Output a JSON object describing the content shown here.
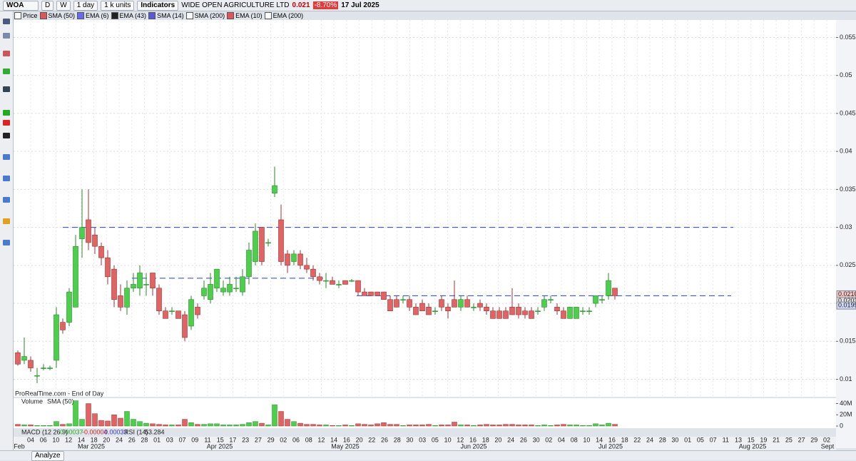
{
  "toolbar": {
    "symbol": "WOA",
    "d": "D",
    "w": "W",
    "period": "1 day",
    "units": "1 k units",
    "indicators": "Indicators",
    "company": "WIDE OPEN AGRICULTURE LTD",
    "price": "0.021",
    "change": "-8.70%",
    "date": "17 Jul 2025"
  },
  "legend": [
    {
      "name": "Price",
      "color": "#ffffff"
    },
    {
      "name": "SMA (50)",
      "color": "#e05555"
    },
    {
      "name": "EMA (6)",
      "color": "#6a6af0"
    },
    {
      "name": "EMA (43)",
      "color": "#222222"
    },
    {
      "name": "SMA (14)",
      "color": "#5a5ad8"
    },
    {
      "name": "SMA (200)",
      "color": "#ffffff"
    },
    {
      "name": "EMA (10)",
      "color": "#e05555"
    },
    {
      "name": "EMA (200)",
      "color": "#ffffff"
    }
  ],
  "footer": {
    "source": "ProRealTime.com - End of Day",
    "volume": "Volume",
    "volume_sma": "SMA (50)",
    "macd": "MACD (12 26 9)",
    "macd_1": "0.00037",
    "macd_2": "-0.00004",
    "macd_3": "0.00033",
    "rsi": "RSI (14)",
    "rsi_value": "53.284",
    "analyze": "Analyze"
  },
  "chart_data": {
    "type": "candlestick",
    "up_color": "#4cd04c",
    "down_color": "#e06464",
    "ylim": [
      0.0077,
      0.0573
    ],
    "yticks": [
      0.01,
      0.015,
      0.02,
      0.025,
      0.03,
      0.035,
      0.04,
      0.045,
      0.05,
      0.055
    ],
    "grid": true,
    "categories": [
      "04",
      "06",
      "10",
      "12",
      "14",
      "18",
      "20",
      "24",
      "26",
      "28",
      "01",
      "03",
      "07",
      "09",
      "11",
      "15",
      "17",
      "23",
      "27",
      "29",
      "02",
      "06",
      "08",
      "12",
      "14",
      "16",
      "20",
      "22",
      "26",
      "28",
      "30",
      "03",
      "05",
      "10",
      "12",
      "16",
      "18",
      "20",
      "24",
      "26",
      "30",
      "02",
      "04",
      "08",
      "10",
      "14",
      "16",
      "18",
      "22",
      "24",
      "28",
      "30",
      "01",
      "05",
      "07",
      "11",
      "13",
      "15",
      "19",
      "21",
      "25",
      "27",
      "29",
      "02"
    ],
    "months": [
      "Feb",
      "Mar 2025",
      "Apr 2025",
      "May 2025",
      "Jun 2025",
      "Jul 2025",
      "Aug 2025",
      "Sept"
    ],
    "candles": [
      [
        0.0135,
        0.0138,
        0.0118,
        0.012
      ],
      [
        0.0125,
        0.0155,
        0.012,
        0.013
      ],
      [
        0.0125,
        0.013,
        0.011,
        0.0115
      ],
      [
        0.0105,
        0.0115,
        0.0095,
        0.0105
      ],
      [
        0.0115,
        0.012,
        0.0112,
        0.0115
      ],
      [
        0.0115,
        0.0118,
        0.0112,
        0.0115
      ],
      [
        0.0125,
        0.0195,
        0.0115,
        0.0185
      ],
      [
        0.0175,
        0.018,
        0.016,
        0.0165
      ],
      [
        0.0175,
        0.022,
        0.017,
        0.0215
      ],
      [
        0.0195,
        0.029,
        0.0195,
        0.0275
      ],
      [
        0.0285,
        0.035,
        0.026,
        0.03
      ],
      [
        0.031,
        0.035,
        0.027,
        0.028
      ],
      [
        0.029,
        0.03,
        0.0265,
        0.0275
      ],
      [
        0.0275,
        0.028,
        0.025,
        0.026
      ],
      [
        0.026,
        0.027,
        0.0225,
        0.0235
      ],
      [
        0.0245,
        0.025,
        0.0195,
        0.0205
      ],
      [
        0.021,
        0.0225,
        0.019,
        0.0195
      ],
      [
        0.0195,
        0.023,
        0.0185,
        0.022
      ],
      [
        0.022,
        0.024,
        0.0215,
        0.0225
      ],
      [
        0.022,
        0.025,
        0.021,
        0.024
      ],
      [
        0.0225,
        0.024,
        0.021,
        0.0225
      ],
      [
        0.024,
        0.024,
        0.021,
        0.022
      ],
      [
        0.022,
        0.0225,
        0.0185,
        0.019
      ],
      [
        0.019,
        0.0195,
        0.018,
        0.018
      ],
      [
        0.019,
        0.0195,
        0.0185,
        0.019
      ],
      [
        0.019,
        0.019,
        0.018,
        0.018
      ],
      [
        0.0185,
        0.019,
        0.015,
        0.0155
      ],
      [
        0.017,
        0.021,
        0.0165,
        0.0205
      ],
      [
        0.0195,
        0.02,
        0.018,
        0.0185
      ],
      [
        0.021,
        0.023,
        0.0205,
        0.022
      ],
      [
        0.0205,
        0.024,
        0.02,
        0.0225
      ],
      [
        0.022,
        0.0245,
        0.0215,
        0.0245
      ],
      [
        0.0215,
        0.023,
        0.021,
        0.022
      ],
      [
        0.0215,
        0.0235,
        0.021,
        0.0225
      ],
      [
        0.022,
        0.0235,
        0.0215,
        0.022
      ],
      [
        0.0215,
        0.0245,
        0.021,
        0.0235
      ],
      [
        0.0235,
        0.028,
        0.0225,
        0.027
      ],
      [
        0.0255,
        0.0305,
        0.025,
        0.0295
      ],
      [
        0.03,
        0.03,
        0.025,
        0.0255
      ],
      [
        0.028,
        0.0285,
        0.0275,
        0.028
      ],
      [
        0.0345,
        0.038,
        0.034,
        0.0355
      ],
      [
        0.031,
        0.033,
        0.025,
        0.0255
      ],
      [
        0.0265,
        0.027,
        0.024,
        0.025
      ],
      [
        0.0255,
        0.027,
        0.025,
        0.0265
      ],
      [
        0.0265,
        0.027,
        0.0245,
        0.025
      ],
      [
        0.025,
        0.026,
        0.024,
        0.0245
      ],
      [
        0.0245,
        0.025,
        0.023,
        0.0235
      ],
      [
        0.0235,
        0.024,
        0.0225,
        0.023
      ],
      [
        0.023,
        0.024,
        0.022,
        0.023
      ],
      [
        0.023,
        0.0235,
        0.0225,
        0.0225
      ],
      [
        0.0225,
        0.023,
        0.022,
        0.0225
      ],
      [
        0.023,
        0.023,
        0.0225,
        0.0225
      ],
      [
        0.023,
        0.0232,
        0.0228,
        0.023
      ],
      [
        0.023,
        0.023,
        0.021,
        0.0215
      ],
      [
        0.0215,
        0.022,
        0.021,
        0.021
      ],
      [
        0.0215,
        0.0215,
        0.021,
        0.021
      ],
      [
        0.0215,
        0.0215,
        0.021,
        0.021
      ],
      [
        0.0215,
        0.0215,
        0.0205,
        0.0205
      ],
      [
        0.0205,
        0.021,
        0.019,
        0.019
      ],
      [
        0.0205,
        0.021,
        0.0195,
        0.0195
      ],
      [
        0.0205,
        0.021,
        0.02,
        0.0205
      ],
      [
        0.0205,
        0.021,
        0.019,
        0.0195
      ],
      [
        0.0195,
        0.02,
        0.0185,
        0.0185
      ],
      [
        0.02,
        0.0205,
        0.019,
        0.019
      ],
      [
        0.0195,
        0.02,
        0.0185,
        0.0185
      ],
      [
        0.019,
        0.0195,
        0.0185,
        0.019
      ],
      [
        0.0205,
        0.021,
        0.019,
        0.0195
      ],
      [
        0.0195,
        0.02,
        0.018,
        0.019
      ],
      [
        0.0205,
        0.023,
        0.0195,
        0.0195
      ],
      [
        0.0195,
        0.021,
        0.019,
        0.0205
      ],
      [
        0.0205,
        0.021,
        0.0195,
        0.0195
      ],
      [
        0.0195,
        0.02,
        0.019,
        0.0195
      ],
      [
        0.02,
        0.0205,
        0.019,
        0.0195
      ],
      [
        0.0195,
        0.02,
        0.0185,
        0.019
      ],
      [
        0.019,
        0.0195,
        0.018,
        0.018
      ],
      [
        0.019,
        0.0195,
        0.018,
        0.018
      ],
      [
        0.019,
        0.0195,
        0.018,
        0.018
      ],
      [
        0.0195,
        0.022,
        0.0185,
        0.0185
      ],
      [
        0.0195,
        0.02,
        0.018,
        0.0185
      ],
      [
        0.019,
        0.0195,
        0.018,
        0.0185
      ],
      [
        0.019,
        0.0195,
        0.018,
        0.018
      ],
      [
        0.019,
        0.0195,
        0.0185,
        0.019
      ],
      [
        0.0195,
        0.021,
        0.019,
        0.0205
      ],
      [
        0.0205,
        0.021,
        0.02,
        0.0205
      ],
      [
        0.0195,
        0.02,
        0.0185,
        0.019
      ],
      [
        0.019,
        0.0195,
        0.018,
        0.018
      ],
      [
        0.018,
        0.0195,
        0.018,
        0.0195
      ],
      [
        0.018,
        0.0195,
        0.018,
        0.0195
      ],
      [
        0.019,
        0.0195,
        0.0185,
        0.019
      ],
      [
        0.019,
        0.0195,
        0.0185,
        0.019
      ],
      [
        0.02,
        0.021,
        0.0195,
        0.021
      ],
      [
        0.0205,
        0.021,
        0.02,
        0.0205
      ],
      [
        0.021,
        0.024,
        0.0205,
        0.023
      ],
      [
        0.022,
        0.022,
        0.0205,
        0.021
      ]
    ],
    "levels": [
      {
        "value": 0.03,
        "color": "#2b3fd0"
      },
      {
        "value": 0.0233,
        "color": "#2b3fd0"
      },
      {
        "value": 0.021,
        "color": "#2b3fd0"
      }
    ],
    "price_tags": [
      {
        "value": 0.021,
        "label": "0.0210",
        "color": "#f3c9c9"
      },
      {
        "value": 0.0203,
        "label": "0.0203",
        "color": "#e4e4e4"
      },
      {
        "value": 0.0199,
        "label": "0.0199",
        "color": "#cfd8f5"
      }
    ],
    "volume": {
      "ylim": [
        0,
        47000000
      ],
      "yticks": [
        {
          "value": 40000000,
          "label": "40M"
        },
        {
          "value": 20000000,
          "label": "20M"
        },
        0
      ],
      "values": [
        3000000,
        2000000,
        2000000,
        1000000,
        1000000,
        1000000,
        8000000,
        3000000,
        4000000,
        45000000,
        12000000,
        40000000,
        22000000,
        10000000,
        9000000,
        20000000,
        14000000,
        26000000,
        12000000,
        8000000,
        5000000,
        4000000,
        3000000,
        2000000,
        2000000,
        2000000,
        12000000,
        6000000,
        3000000,
        3000000,
        4000000,
        4000000,
        2000000,
        2000000,
        2000000,
        3000000,
        6000000,
        8000000,
        5000000,
        2000000,
        38000000,
        26000000,
        12000000,
        8000000,
        5000000,
        3000000,
        3000000,
        2000000,
        2000000,
        1000000,
        1000000,
        2000000,
        1000000,
        4000000,
        3000000,
        2000000,
        4000000,
        6000000,
        3000000,
        3000000,
        1000000,
        2000000,
        2000000,
        2000000,
        3000000,
        1000000,
        2000000,
        2000000,
        7000000,
        2000000,
        2000000,
        1000000,
        2000000,
        3000000,
        2000000,
        2000000,
        3000000,
        3000000,
        2000000,
        2000000,
        2000000,
        1000000,
        2000000,
        1000000,
        2000000,
        3000000,
        2000000,
        2000000,
        1000000,
        1000000,
        4000000,
        2000000,
        5000000,
        3000000
      ]
    }
  }
}
